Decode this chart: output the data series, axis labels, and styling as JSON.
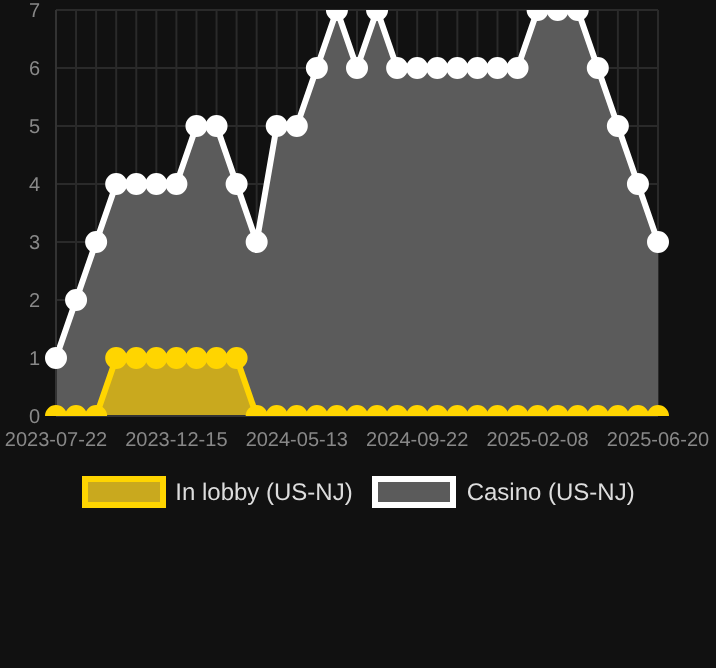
{
  "chart_data": {
    "type": "area",
    "categories": [
      "2023-07-22",
      null,
      null,
      null,
      null,
      null,
      "2023-12-15",
      null,
      null,
      null,
      null,
      null,
      "2024-05-13",
      null,
      null,
      null,
      null,
      null,
      "2024-09-22",
      null,
      null,
      null,
      null,
      null,
      "2025-02-08",
      null,
      null,
      null,
      null,
      null,
      "2025-06-20"
    ],
    "series": [
      {
        "name": "In lobby (US-NJ)",
        "color": "#ffd500",
        "values": [
          0,
          0,
          0,
          1,
          1,
          1,
          1,
          1,
          1,
          1,
          0,
          0,
          0,
          0,
          0,
          0,
          0,
          0,
          0,
          0,
          0,
          0,
          0,
          0,
          0,
          0,
          0,
          0,
          0,
          0,
          0
        ]
      },
      {
        "name": "Casino (US-NJ)",
        "color": "#ffffff",
        "values": [
          1,
          2,
          3,
          4,
          4,
          4,
          4,
          5,
          5,
          4,
          3,
          5,
          5,
          6,
          7,
          6,
          7,
          6,
          6,
          6,
          6,
          6,
          6,
          6,
          7,
          7,
          7,
          6,
          5,
          4,
          3
        ]
      }
    ],
    "ylim": [
      0,
      7
    ],
    "yticks": [
      0,
      1,
      2,
      3,
      4,
      5,
      6,
      7
    ],
    "grid": true,
    "legend": "bottom",
    "marker": "circle"
  }
}
